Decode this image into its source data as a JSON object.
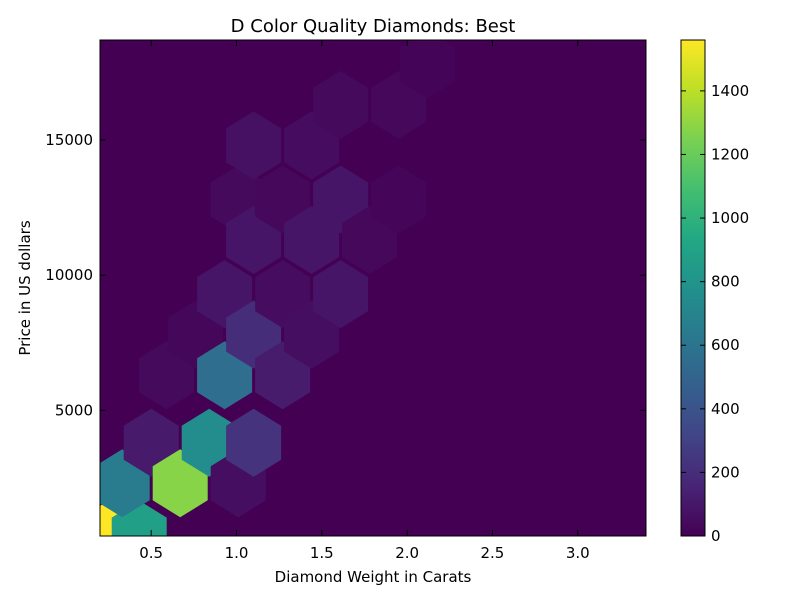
{
  "chart_data": {
    "type": "heatmap",
    "title": "D Color Quality Diamonds: Best",
    "xlabel": "Diamond Weight in Carats",
    "ylabel": "Price in US dollars",
    "xlim": [
      0.2,
      3.4
    ],
    "ylim": [
      350,
      18700
    ],
    "x_ticks": [
      {
        "value": 0.5,
        "label": "0.5"
      },
      {
        "value": 1.0,
        "label": "1.0"
      },
      {
        "value": 1.5,
        "label": "1.5"
      },
      {
        "value": 2.0,
        "label": "2.0"
      },
      {
        "value": 2.5,
        "label": "2.5"
      },
      {
        "value": 3.0,
        "label": "3.0"
      }
    ],
    "y_ticks": [
      {
        "value": 5000,
        "label": "5000"
      },
      {
        "value": 10000,
        "label": "10000"
      },
      {
        "value": 15000,
        "label": "15000"
      }
    ],
    "background_count": 0,
    "colorbar": {
      "colormap": "viridis",
      "min": 0,
      "max": 1560,
      "ticks": [
        {
          "value": 0,
          "label": "0"
        },
        {
          "value": 200,
          "label": "200"
        },
        {
          "value": 400,
          "label": "400"
        },
        {
          "value": 600,
          "label": "600"
        },
        {
          "value": 800,
          "label": "800"
        },
        {
          "value": 1000,
          "label": "1000"
        },
        {
          "value": 1200,
          "label": "1200"
        },
        {
          "value": 1400,
          "label": "1400"
        }
      ]
    },
    "hex_bins": [
      {
        "x": 0.25,
        "y": 400,
        "count": 1560
      },
      {
        "x": 0.43,
        "y": 400,
        "count": 880
      },
      {
        "x": 0.33,
        "y": 2300,
        "count": 650
      },
      {
        "x": 0.5,
        "y": 3800,
        "count": 110
      },
      {
        "x": 0.59,
        "y": 6300,
        "count": 40
      },
      {
        "x": 0.67,
        "y": 2300,
        "count": 1280
      },
      {
        "x": 0.76,
        "y": 7800,
        "count": 25
      },
      {
        "x": 0.84,
        "y": 3800,
        "count": 750
      },
      {
        "x": 0.93,
        "y": 6300,
        "count": 560
      },
      {
        "x": 0.93,
        "y": 9300,
        "count": 90
      },
      {
        "x": 1.01,
        "y": 2300,
        "count": 60
      },
      {
        "x": 1.01,
        "y": 12800,
        "count": 40
      },
      {
        "x": 1.1,
        "y": 3800,
        "count": 230
      },
      {
        "x": 1.1,
        "y": 7800,
        "count": 200
      },
      {
        "x": 1.1,
        "y": 11300,
        "count": 90
      },
      {
        "x": 1.1,
        "y": 14800,
        "count": 70
      },
      {
        "x": 1.27,
        "y": 6300,
        "count": 120
      },
      {
        "x": 1.27,
        "y": 9300,
        "count": 50
      },
      {
        "x": 1.27,
        "y": 12800,
        "count": 30
      },
      {
        "x": 1.44,
        "y": 7800,
        "count": 60
      },
      {
        "x": 1.44,
        "y": 11300,
        "count": 90
      },
      {
        "x": 1.44,
        "y": 14800,
        "count": 50
      },
      {
        "x": 1.61,
        "y": 9300,
        "count": 90
      },
      {
        "x": 1.61,
        "y": 12800,
        "count": 90
      },
      {
        "x": 1.61,
        "y": 16300,
        "count": 40
      },
      {
        "x": 1.78,
        "y": 11300,
        "count": 30
      },
      {
        "x": 1.95,
        "y": 12800,
        "count": 20
      },
      {
        "x": 1.95,
        "y": 16300,
        "count": 30
      },
      {
        "x": 2.12,
        "y": 17800,
        "count": 15
      }
    ]
  }
}
